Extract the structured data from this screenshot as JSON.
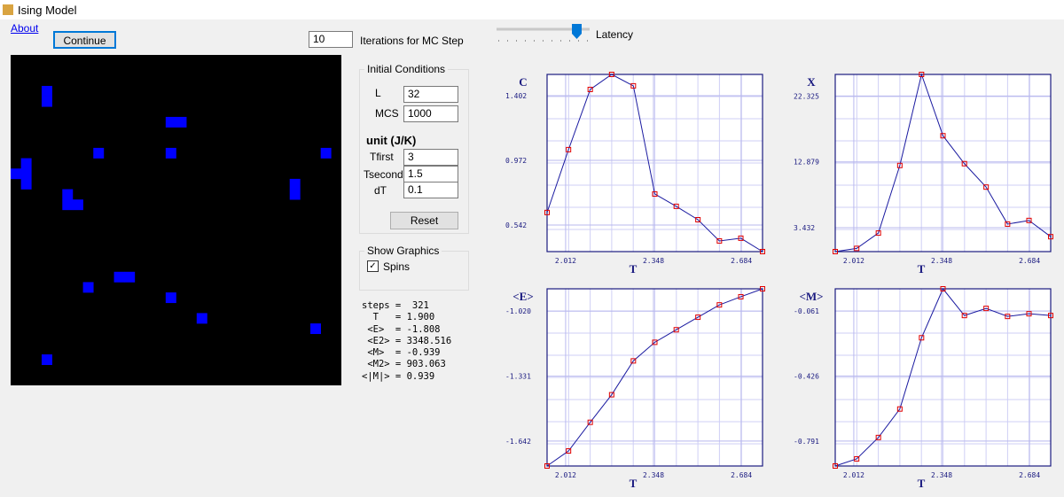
{
  "window": {
    "title": "Ising Model"
  },
  "toolbar": {
    "about": "About",
    "continue": "Continue",
    "iterations": "10",
    "iterations_label": "Iterations for MC Step",
    "latency_label": "Latency"
  },
  "initial_conditions": {
    "title": "Initial Conditions",
    "fields": [
      {
        "label": "L",
        "value": "32"
      },
      {
        "label": "MCS",
        "value": "1000"
      }
    ],
    "unit": "unit (J/K)",
    "temps": [
      {
        "label": "Tfirst",
        "value": "3"
      },
      {
        "label": "Tsecond",
        "value": "1.5"
      },
      {
        "label": "dT",
        "value": "0.1"
      }
    ],
    "reset": "Reset"
  },
  "show_graphics": {
    "title": "Show Graphics",
    "spins": "Spins"
  },
  "stats": [
    "steps =  321",
    "  T   = 1.900",
    " <E>  = -1.808",
    " <E2> = 3348.516",
    " <M>  = -0.939",
    " <M2> = 903.063",
    "<|M|> = 0.939"
  ],
  "chart_data": [
    {
      "type": "line",
      "title": "C",
      "x_label": "T",
      "x": [
        1.941,
        2.023,
        2.106,
        2.188,
        2.271,
        2.353,
        2.435,
        2.518,
        2.6,
        2.682,
        2.765
      ],
      "values": [
        0.625,
        1.043,
        1.443,
        1.543,
        1.467,
        0.748,
        0.666,
        0.577,
        0.436,
        0.454,
        0.365
      ],
      "color": "#1a1aa0",
      "marker_color": "#e00000",
      "xlim": [
        1.941,
        2.765
      ],
      "ylim": [
        0.365,
        1.543
      ],
      "xticks": [
        2.012,
        2.348,
        2.684
      ],
      "yticks": [
        0.542,
        0.972,
        1.402
      ],
      "grid": true
    },
    {
      "type": "line",
      "title": "X",
      "x_label": "T",
      "x": [
        1.941,
        2.023,
        2.106,
        2.188,
        2.271,
        2.353,
        2.435,
        2.518,
        2.6,
        2.682,
        2.765
      ],
      "values": [
        0,
        0.46,
        2.66,
        12.36,
        25.43,
        16.63,
        12.62,
        9.26,
        3.95,
        4.47,
        2.14
      ],
      "color": "#1a1aa0",
      "marker_color": "#e00000",
      "xlim": [
        1.941,
        2.765
      ],
      "ylim": [
        0,
        25.43
      ],
      "xticks": [
        2.012,
        2.348,
        2.684
      ],
      "yticks": [
        3.432,
        12.879,
        22.325
      ],
      "grid": true
    },
    {
      "type": "line",
      "title": "<E>",
      "x_label": "T",
      "x": [
        1.941,
        2.023,
        2.106,
        2.188,
        2.271,
        2.353,
        2.435,
        2.518,
        2.6,
        2.682,
        2.765
      ],
      "values": [
        -1.761,
        -1.689,
        -1.552,
        -1.42,
        -1.258,
        -1.169,
        -1.109,
        -1.049,
        -0.99,
        -0.951,
        -0.913
      ],
      "color": "#1a1aa0",
      "marker_color": "#e00000",
      "xlim": [
        1.941,
        2.765
      ],
      "ylim": [
        -1.761,
        -0.913
      ],
      "xticks": [
        2.012,
        2.348,
        2.684
      ],
      "yticks": [
        -1.642,
        -1.331,
        {
          "value": -1.02,
          "label": "-1.020"
        }
      ],
      "grid": true
    },
    {
      "type": "line",
      "title": "<M>",
      "x_label": "T",
      "x": [
        1.941,
        2.023,
        2.106,
        2.188,
        2.271,
        2.353,
        2.435,
        2.518,
        2.6,
        2.682,
        2.765
      ],
      "values": [
        -0.931,
        -0.891,
        -0.771,
        -0.611,
        -0.211,
        0.064,
        -0.086,
        -0.046,
        -0.091,
        -0.076,
        -0.086
      ],
      "color": "#1a1aa0",
      "marker_color": "#e00000",
      "xlim": [
        1.941,
        2.765
      ],
      "ylim": [
        -0.931,
        0.064
      ],
      "xticks": [
        2.012,
        2.348,
        2.684
      ],
      "yticks": [
        -0.791,
        -0.426,
        -0.061
      ],
      "grid": true
    }
  ]
}
